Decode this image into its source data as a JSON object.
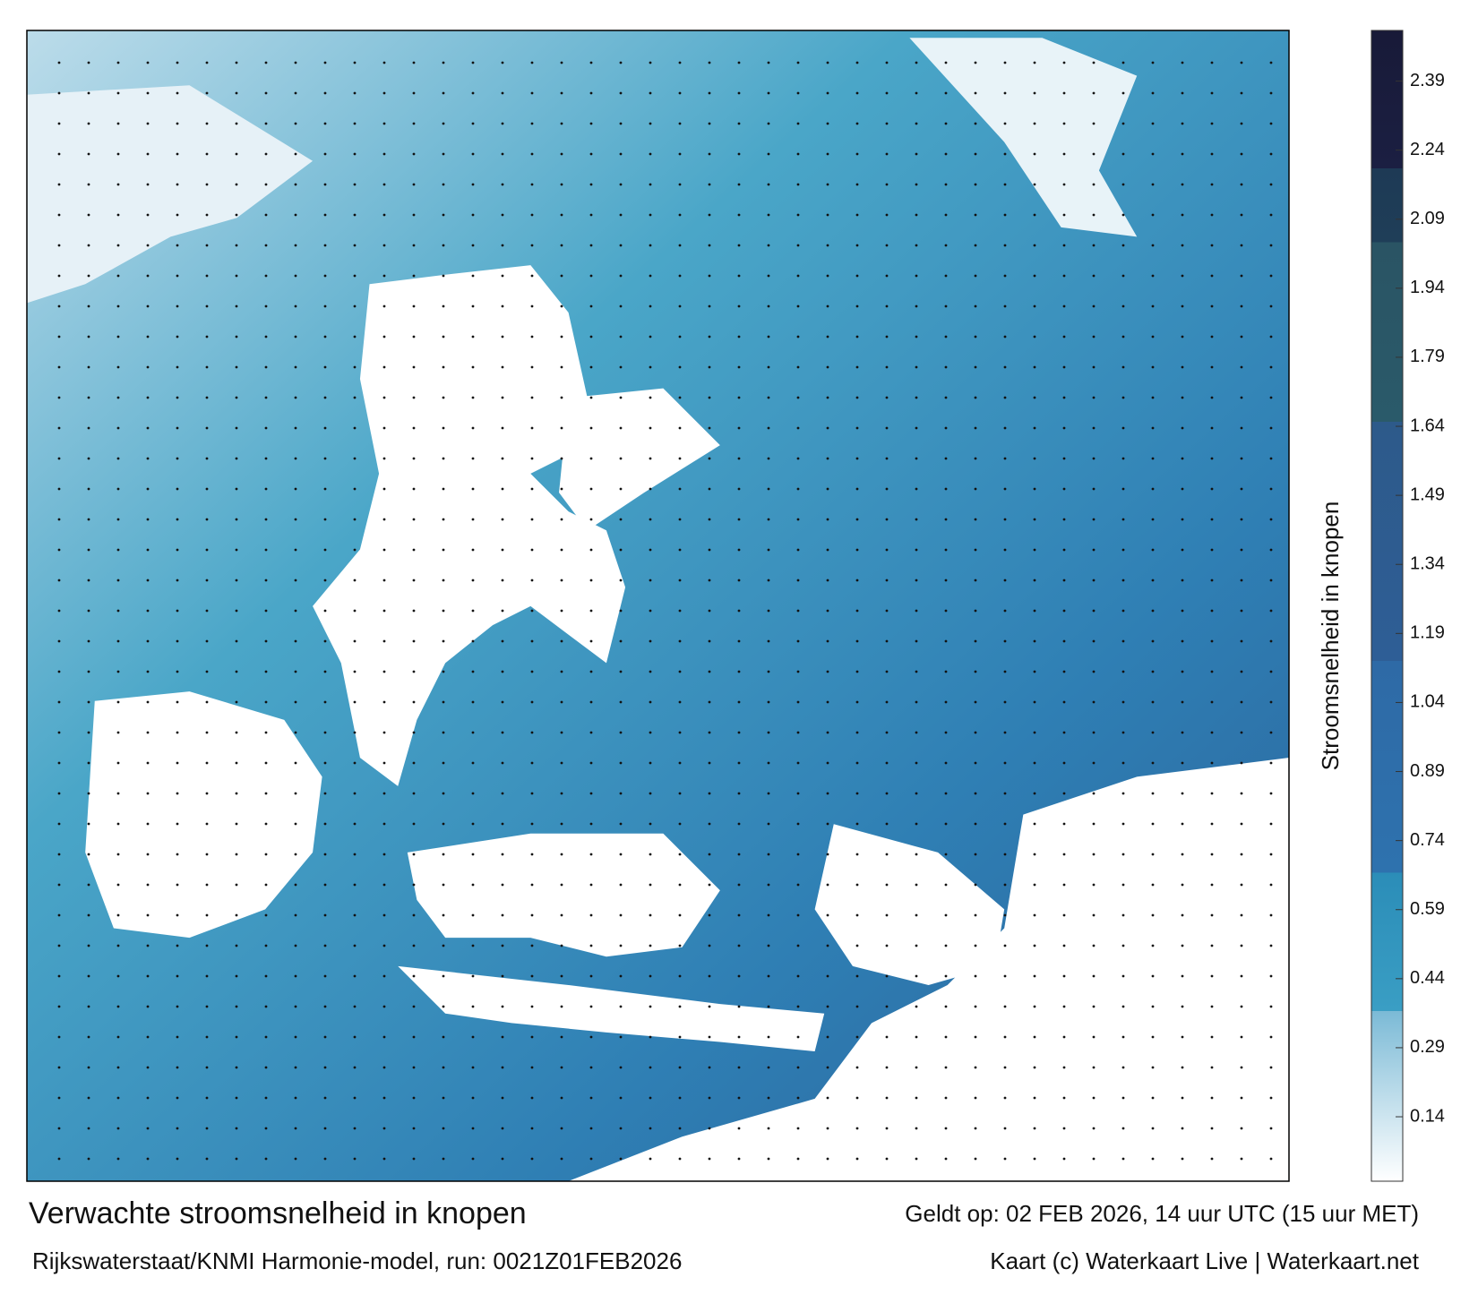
{
  "title": "Verwachte stroomsnelheid in knopen",
  "subtitle": "Rijkswaterstaat/KNMI Harmonie-model, run: 0021Z01FEB2026",
  "valid": "Geldt op: 02 FEB 2026, 14 uur UTC (15 uur MET)",
  "credit": "Kaart (c) Waterkaart Live | Waterkaart.net",
  "colorbar": {
    "label": "Stroomsnelheid in knopen",
    "lim": [
      0,
      2.5
    ],
    "ticks": [
      0.14,
      0.29,
      0.44,
      0.59,
      0.74,
      0.89,
      1.04,
      1.19,
      1.34,
      1.49,
      1.64,
      1.79,
      1.94,
      2.09,
      2.24,
      2.39
    ],
    "stops": [
      {
        "value": 0,
        "color": "#ffffff"
      },
      {
        "value": 0.37,
        "color": "#7bbad6"
      },
      {
        "value": 0.37,
        "color": "#3a9ec4"
      },
      {
        "value": 0.67,
        "color": "#2b8db8"
      },
      {
        "value": 0.67,
        "color": "#2e72ae"
      },
      {
        "value": 1.13,
        "color": "#2e6aa6"
      },
      {
        "value": 1.13,
        "color": "#2e5e96"
      },
      {
        "value": 1.65,
        "color": "#2d5a8a"
      },
      {
        "value": 1.65,
        "color": "#2a5a6a"
      },
      {
        "value": 2.04,
        "color": "#2a5464"
      },
      {
        "value": 2.04,
        "color": "#1f3e58"
      },
      {
        "value": 2.2,
        "color": "#1e3a55"
      },
      {
        "value": 2.2,
        "color": "#1b1f42"
      },
      {
        "value": 2.5,
        "color": "#181a38"
      }
    ]
  }
}
